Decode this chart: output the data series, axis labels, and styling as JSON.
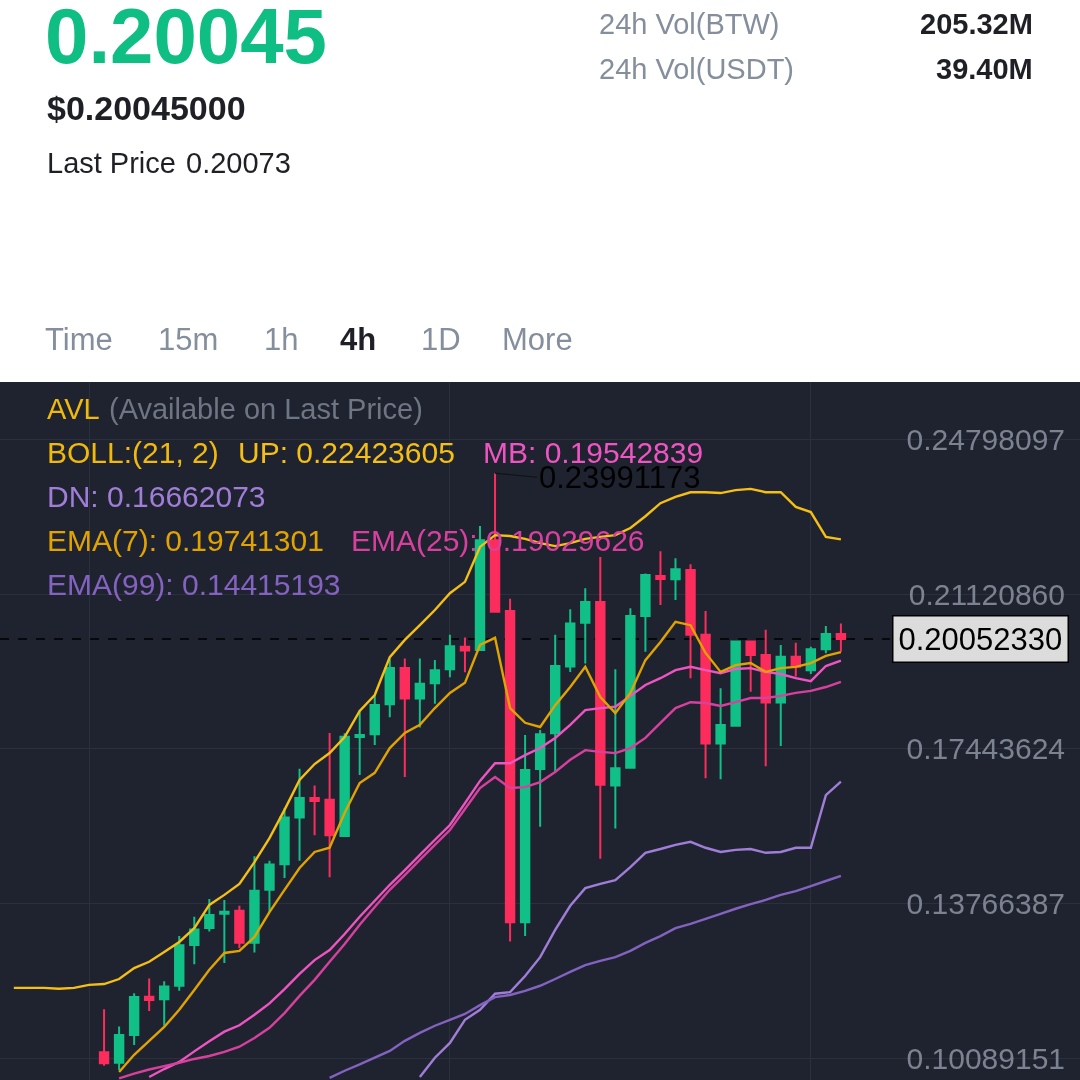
{
  "chart_data": {
    "type": "candlestick",
    "title": "0.20045",
    "subtitle": "$0.20045000",
    "annotations": [
      "Last Price",
      "0.20073",
      "24h Vol(BTW)",
      "205.32M",
      "24h Vol(USDT)",
      "39.40M",
      "Time",
      "15m",
      "1h",
      "4h",
      "1D",
      "More",
      "AVL",
      "(Available on Last Price)",
      "BOLL:(21, 2)",
      "0.23991173",
      "0.20052330"
    ],
    "categories": [
      null,
      null,
      null,
      null,
      null,
      null,
      null,
      null,
      null,
      null,
      null,
      null,
      null,
      null,
      null,
      null,
      null,
      null,
      null,
      null,
      null,
      null,
      null,
      null,
      null,
      null,
      null,
      null,
      null,
      null,
      null,
      null,
      null,
      null,
      null,
      null,
      null,
      null,
      null,
      null,
      null,
      null,
      null,
      null,
      null,
      null,
      null,
      null,
      null,
      null,
      null,
      null,
      null,
      null,
      null,
      null
    ],
    "ohlc": [
      null,
      null,
      null,
      null,
      null,
      null,
      [
        0.1023,
        0.1125,
        0.0991,
        0.0997
      ],
      [
        0.0998,
        0.1084,
        0.0981,
        0.1064
      ],
      [
        0.1064,
        0.1163,
        0.104,
        0.1154
      ],
      [
        0.1155,
        0.1198,
        0.1121,
        0.1147
      ],
      [
        0.1149,
        0.1192,
        0.1086,
        0.1179
      ],
      [
        0.1181,
        0.1299,
        0.1169,
        0.1277
      ],
      [
        0.1278,
        0.1345,
        0.1232,
        0.1315
      ],
      [
        0.1318,
        0.1387,
        0.131,
        0.1349
      ],
      [
        0.1352,
        0.1385,
        0.1235,
        0.1357
      ],
      [
        0.1359,
        0.1371,
        0.127,
        0.1283
      ],
      [
        0.1283,
        0.1489,
        0.126,
        0.1407
      ],
      [
        0.1409,
        0.1478,
        0.1357,
        0.1469
      ],
      [
        0.147,
        0.1603,
        0.1437,
        0.1581
      ],
      [
        0.1581,
        0.1697,
        0.1478,
        0.1627
      ],
      [
        0.1627,
        0.1657,
        0.1539,
        0.162
      ],
      [
        0.1623,
        0.1782,
        0.1439,
        0.1539
      ],
      [
        0.1537,
        0.1781,
        0.1537,
        0.1773
      ],
      [
        0.1772,
        0.1836,
        0.1682,
        0.1777
      ],
      [
        0.1779,
        0.187,
        0.1753,
        0.1848
      ],
      [
        0.185,
        0.1959,
        0.1819,
        0.1936
      ],
      [
        0.1936,
        0.1959,
        0.1677,
        0.1864
      ],
      [
        0.1864,
        0.1959,
        0.1795,
        0.1899
      ],
      [
        0.19,
        0.1955,
        0.1851,
        0.1931
      ],
      [
        0.1933,
        0.2015,
        0.1914,
        0.1988
      ],
      [
        0.1987,
        0.2009,
        0.1926,
        0.1978
      ],
      [
        0.1979,
        0.2274,
        0.1979,
        0.224
      ],
      [
        0.224,
        0.23991173,
        0.207,
        0.207
      ],
      [
        0.2072,
        0.2101,
        0.1286,
        0.1332
      ],
      [
        0.1332,
        0.1777,
        0.1299,
        0.1694
      ],
      [
        0.1696,
        0.1789,
        0.1559,
        0.1779
      ],
      [
        0.1781,
        0.2015,
        0.169,
        0.1941
      ],
      [
        0.194,
        0.2076,
        0.1927,
        0.2042
      ],
      [
        0.2044,
        0.2126,
        0.1947,
        0.2093
      ],
      [
        0.2093,
        0.22,
        0.1483,
        0.1659
      ],
      [
        0.1657,
        0.1933,
        0.1555,
        0.1698
      ],
      [
        0.1699,
        0.2078,
        0.1699,
        0.206
      ],
      [
        0.206,
        0.2161,
        0.1975,
        0.2157
      ],
      [
        0.2155,
        0.2214,
        0.2086,
        0.2148
      ],
      [
        0.2147,
        0.2197,
        0.2098,
        0.2171
      ],
      [
        0.2169,
        0.2183,
        0.1912,
        0.2015
      ],
      [
        0.2015,
        0.2072,
        0.1674,
        0.1757
      ],
      [
        0.1757,
        0.1888,
        0.1672,
        0.1801
      ],
      [
        0.1799,
        0.1999,
        0.1799,
        0.1999
      ],
      [
        0.1999,
        0.2001,
        0.188,
        0.1967
      ],
      [
        0.1967,
        0.2027,
        0.1703,
        0.1854
      ],
      [
        0.1854,
        0.1991,
        0.1751,
        0.1963
      ],
      [
        0.1963,
        0.1996,
        0.1916,
        0.1939
      ],
      [
        0.1931,
        0.1987,
        0.1922,
        0.1981
      ],
      [
        0.1981,
        0.2036,
        0.1971,
        0.2017
      ],
      [
        0.2017,
        0.2042,
        0.1975,
        0.2005233
      ]
    ],
    "colors": [
      null,
      null,
      null,
      null,
      null,
      null,
      "#fc2d5c",
      "#10c087",
      "#10c087",
      "#fc2d5c",
      "#10c087",
      "#10c087",
      "#10c087",
      "#10c087",
      "#10c087",
      "#fc2d5c",
      "#10c087",
      "#10c087",
      "#10c087",
      "#10c087",
      "#fc2d5c",
      "#fc2d5c",
      "#10c087",
      "#10c087",
      "#10c087",
      "#10c087",
      "#fc2d5c",
      "#10c087",
      "#10c087",
      "#10c087",
      "#fc2d5c",
      "#10c087",
      "#fc2d5c",
      "#fc2d5c",
      "#10c087",
      "#10c087",
      "#10c087",
      "#10c087",
      "#10c087",
      "#fc2d5c",
      "#10c087",
      "#10c087",
      "#10c087",
      "#fc2d5c",
      "#10c087",
      "#fc2d5c",
      "#fc2d5c",
      "#10c087",
      "#10c087",
      "#fc2d5c",
      "#fc2d5c",
      "#10c087",
      "#fc2d5c",
      "#10c087",
      "#10c087",
      "#fc2d5c"
    ],
    "series": [
      {
        "name": "UP: 0.22423605",
        "type": "line",
        "color": "#f5bf14",
        "values": [
          0.1176,
          0.1176,
          0.1176,
          0.1174,
          0.1176,
          0.1183,
          0.1185,
          0.1197,
          0.1223,
          0.1238,
          0.1261,
          0.1285,
          0.1318,
          0.1373,
          0.1397,
          0.1423,
          0.1475,
          0.1532,
          0.1599,
          0.167,
          0.1708,
          0.1734,
          0.1772,
          0.1834,
          0.1872,
          0.1962,
          0.2003,
          0.2038,
          0.2074,
          0.2114,
          0.2141,
          0.2224,
          0.2252,
          0.225,
          0.2243,
          0.2233,
          0.2226,
          0.2233,
          0.2243,
          0.2248,
          0.2252,
          0.2269,
          0.2297,
          0.2328,
          0.2343,
          0.2354,
          0.2354,
          0.2352,
          0.2359,
          0.2362,
          0.2354,
          0.2354,
          0.2319,
          0.2307,
          0.2248,
          0.2242
        ]
      },
      {
        "name": "MB: 0.19542839",
        "type": "line",
        "color": "#ef55c2",
        "values": [
          null,
          null,
          null,
          null,
          null,
          null,
          null,
          null,
          null,
          0.0964,
          0.0983,
          0.1,
          0.1025,
          0.1049,
          0.1072,
          0.1087,
          0.1112,
          0.1139,
          0.1173,
          0.1209,
          0.1242,
          0.1266,
          0.1304,
          0.1345,
          0.1383,
          0.1421,
          0.1456,
          0.1492,
          0.1528,
          0.1563,
          0.1615,
          0.1668,
          0.171,
          0.171,
          0.1729,
          0.1746,
          0.177,
          0.1801,
          0.1836,
          0.1841,
          0.1844,
          0.187,
          0.1896,
          0.1912,
          0.1931,
          0.1939,
          0.1931,
          0.1924,
          0.1934,
          0.1936,
          0.1927,
          0.1922,
          0.1912,
          0.1905,
          0.1941,
          0.1954
        ]
      },
      {
        "name": "DN: 0.16662073",
        "type": "line",
        "color": "#a07ed8",
        "values": [
          null,
          null,
          null,
          null,
          null,
          null,
          null,
          null,
          null,
          null,
          null,
          null,
          null,
          null,
          null,
          null,
          null,
          null,
          null,
          null,
          null,
          null,
          null,
          null,
          null,
          null,
          null,
          0.0964,
          0.101,
          0.1045,
          0.11,
          0.1124,
          0.1162,
          0.1166,
          0.1204,
          0.1249,
          0.1314,
          0.1371,
          0.1413,
          0.1423,
          0.1432,
          0.1463,
          0.1497,
          0.1506,
          0.1516,
          0.1523,
          0.1509,
          0.1499,
          0.1504,
          0.1506,
          0.1497,
          0.1499,
          0.1509,
          0.1509,
          0.1634,
          0.1666
        ]
      },
      {
        "name": "EMA(7): 0.19741301",
        "type": "line",
        "color": "#e0a300",
        "values": [
          null,
          null,
          null,
          null,
          null,
          null,
          null,
          0.0976,
          0.1017,
          0.105,
          0.1083,
          0.1124,
          0.1171,
          0.1219,
          0.1259,
          0.1264,
          0.1297,
          0.1356,
          0.1409,
          0.1461,
          0.1499,
          0.1509,
          0.1592,
          0.1663,
          0.1687,
          0.1746,
          0.1782,
          0.1801,
          0.1841,
          0.1877,
          0.1901,
          0.1991,
          0.2008,
          0.1841,
          0.1806,
          0.1796,
          0.1848,
          0.1891,
          0.1939,
          0.1867,
          0.1829,
          0.1877,
          0.1955,
          0.1998,
          0.2046,
          0.2038,
          0.1972,
          0.1927,
          0.1943,
          0.1948,
          0.1927,
          0.1936,
          0.1939,
          0.1948,
          0.1965,
          0.1974
        ]
      },
      {
        "name": "EMA(25): 0.19029626",
        "type": "line",
        "color": "#d8409e",
        "values": [
          null,
          null,
          null,
          null,
          null,
          null,
          null,
          0.0961,
          0.0972,
          0.0982,
          0.099,
          0.0998,
          0.1007,
          0.1014,
          0.1024,
          0.1036,
          0.1057,
          0.1081,
          0.1116,
          0.1157,
          0.1195,
          0.1238,
          0.128,
          0.1326,
          0.1368,
          0.1409,
          0.1444,
          0.148,
          0.1516,
          0.1551,
          0.1601,
          0.1651,
          0.1677,
          0.1651,
          0.1653,
          0.1665,
          0.1689,
          0.1718,
          0.1741,
          0.1737,
          0.1734,
          0.1746,
          0.177,
          0.1806,
          0.1841,
          0.1855,
          0.1853,
          0.1846,
          0.1855,
          0.1865,
          0.1865,
          0.187,
          0.1877,
          0.1882,
          0.1891,
          0.1903
        ]
      },
      {
        "name": "EMA(99): 0.14415193",
        "type": "line",
        "color": "#8462c0",
        "values": [
          null,
          null,
          null,
          null,
          null,
          null,
          null,
          null,
          null,
          null,
          null,
          null,
          null,
          null,
          null,
          null,
          null,
          null,
          null,
          null,
          null,
          0.0962,
          0.0979,
          0.0994,
          0.101,
          0.1026,
          0.105,
          0.1069,
          0.1086,
          0.11,
          0.1114,
          0.1135,
          0.1154,
          0.1159,
          0.1169,
          0.1181,
          0.1197,
          0.1214,
          0.123,
          0.124,
          0.1249,
          0.1264,
          0.1283,
          0.1299,
          0.1318,
          0.1328,
          0.134,
          0.1352,
          0.1364,
          0.1375,
          0.1385,
          0.1397,
          0.1406,
          0.1418,
          0.143,
          0.1442
        ]
      }
    ],
    "ylim": [
      0.0957,
      0.2616
    ],
    "yticks": [
      0.24798097,
      {
        "value": 0.2112086,
        "label": "0.21120860"
      },
      0.17443624,
      0.13766387,
      0.10089151
    ],
    "ref_lines": [
      {
        "axis": "y",
        "value": 0.2005233,
        "color": "#000000",
        "line_style": "dashed"
      }
    ],
    "grid": true,
    "legend": "top left",
    "tick_labels": "y"
  }
}
